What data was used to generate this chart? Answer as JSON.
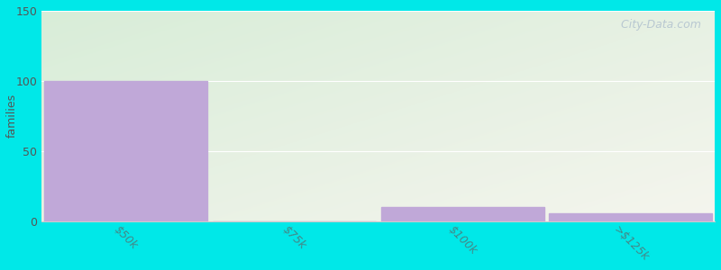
{
  "categories": [
    "$50k",
    "$75k",
    "$100k",
    ">$125k"
  ],
  "values": [
    100,
    0,
    10,
    6
  ],
  "bar_color": "#c0a8d8",
  "ylabel": "families",
  "ylim": [
    0,
    150
  ],
  "yticks": [
    0,
    50,
    100,
    150
  ],
  "background_color": "#00e8e8",
  "grad_top_left": "#d8edd8",
  "grad_bottom_right": "#f5f5ee",
  "title_fontsize": 15,
  "subtitle_fontsize": 11,
  "subtitle_color": "#cc4488",
  "title_fontweight": "bold",
  "watermark_text": "  City-Data.com",
  "watermark_color": "#aabbcc",
  "tick_color": "#448888",
  "figsize": [
    8.0,
    3.0
  ],
  "dpi": 100
}
